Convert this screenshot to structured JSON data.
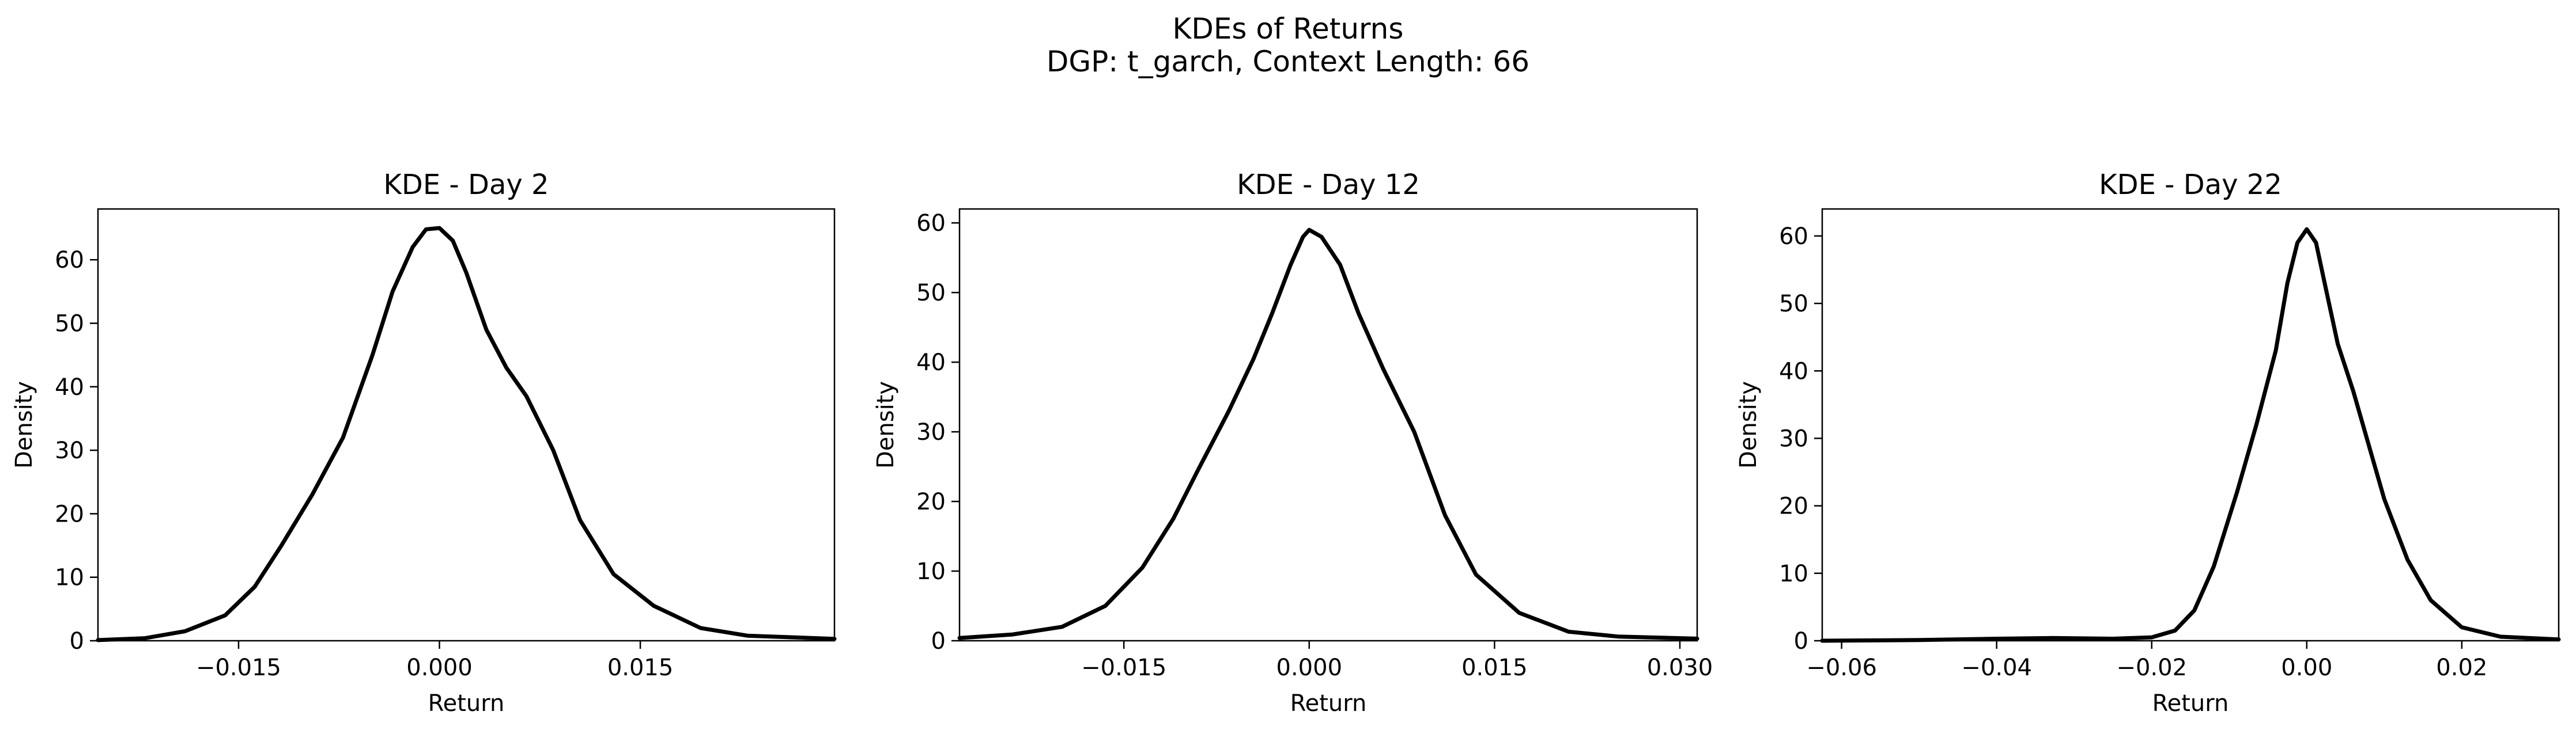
{
  "figure": {
    "title_line1": "KDEs of Returns",
    "title_line2": "DGP: t_garch, Context Length: 66"
  },
  "chart_data": [
    {
      "type": "line",
      "title": "KDE - Day 2",
      "xlabel": "Return",
      "ylabel": "Density",
      "xlim": [
        -0.0255,
        0.0295
      ],
      "ylim": [
        0,
        68
      ],
      "xticks": [
        -0.015,
        0.0,
        0.015
      ],
      "xtick_labels": [
        "−0.015",
        "0.000",
        "0.015"
      ],
      "yticks": [
        0,
        10,
        20,
        30,
        40,
        50,
        60
      ],
      "grid": false,
      "legend": "none",
      "series": [
        {
          "color": "#000000",
          "x": [
            -0.0255,
            -0.022,
            -0.019,
            -0.016,
            -0.0138,
            -0.0118,
            -0.0095,
            -0.0072,
            -0.005,
            -0.0035,
            -0.002,
            -0.001,
            0.0,
            0.001,
            0.002,
            0.0035,
            0.005,
            0.0065,
            0.0085,
            0.0105,
            0.013,
            0.016,
            0.0195,
            0.023,
            0.0295
          ],
          "y": [
            0.1,
            0.4,
            1.5,
            4.0,
            8.5,
            15.0,
            23.0,
            32.0,
            45.0,
            55.0,
            62.0,
            64.8,
            65.0,
            63.0,
            58.0,
            49.0,
            43.0,
            38.5,
            30.0,
            19.0,
            10.5,
            5.5,
            2.0,
            0.8,
            0.3
          ]
        }
      ]
    },
    {
      "type": "line",
      "title": "KDE - Day 12",
      "xlabel": "Return",
      "ylabel": "Density",
      "xlim": [
        -0.0283,
        0.0314
      ],
      "ylim": [
        0,
        62
      ],
      "xticks": [
        -0.015,
        0.0,
        0.015,
        0.03
      ],
      "xtick_labels": [
        "−0.015",
        "0.000",
        "0.015",
        "0.030"
      ],
      "yticks": [
        0,
        10,
        20,
        30,
        40,
        50,
        60
      ],
      "grid": false,
      "legend": "none",
      "series": [
        {
          "color": "#000000",
          "x": [
            -0.0283,
            -0.024,
            -0.02,
            -0.0165,
            -0.0135,
            -0.011,
            -0.009,
            -0.0065,
            -0.0045,
            -0.003,
            -0.0015,
            -0.0005,
            0.0,
            0.001,
            0.0025,
            0.004,
            0.006,
            0.0085,
            0.011,
            0.0135,
            0.017,
            0.021,
            0.025,
            0.0314
          ],
          "y": [
            0.4,
            0.9,
            2.0,
            5.0,
            10.5,
            17.5,
            24.5,
            33.0,
            40.5,
            47.0,
            54.0,
            58.0,
            59.0,
            58.0,
            54.0,
            47.0,
            39.0,
            30.0,
            18.0,
            9.5,
            4.0,
            1.3,
            0.6,
            0.3
          ]
        }
      ]
    },
    {
      "type": "line",
      "title": "KDE - Day 22",
      "xlabel": "Return",
      "ylabel": "Density",
      "xlim": [
        -0.0625,
        0.0325
      ],
      "ylim": [
        0,
        64
      ],
      "xticks": [
        -0.06,
        -0.04,
        -0.02,
        0.0,
        0.02
      ],
      "xtick_labels": [
        "−0.06",
        "−0.04",
        "−0.02",
        "0.00",
        "0.02"
      ],
      "yticks": [
        0,
        10,
        20,
        30,
        40,
        50,
        60
      ],
      "grid": false,
      "legend": "none",
      "series": [
        {
          "color": "#000000",
          "x": [
            -0.0625,
            -0.05,
            -0.04,
            -0.033,
            -0.025,
            -0.02,
            -0.017,
            -0.0145,
            -0.012,
            -0.009,
            -0.0065,
            -0.004,
            -0.0025,
            -0.0012,
            0.0,
            0.0012,
            0.0025,
            0.004,
            0.006,
            0.008,
            0.01,
            0.013,
            0.016,
            0.02,
            0.025,
            0.0325
          ],
          "y": [
            0.0,
            0.1,
            0.3,
            0.4,
            0.3,
            0.5,
            1.5,
            4.5,
            11.0,
            22.0,
            32.0,
            43.0,
            53.0,
            59.0,
            61.0,
            59.0,
            52.0,
            44.0,
            37.0,
            29.0,
            21.0,
            12.0,
            6.0,
            2.0,
            0.6,
            0.2
          ]
        }
      ]
    }
  ]
}
